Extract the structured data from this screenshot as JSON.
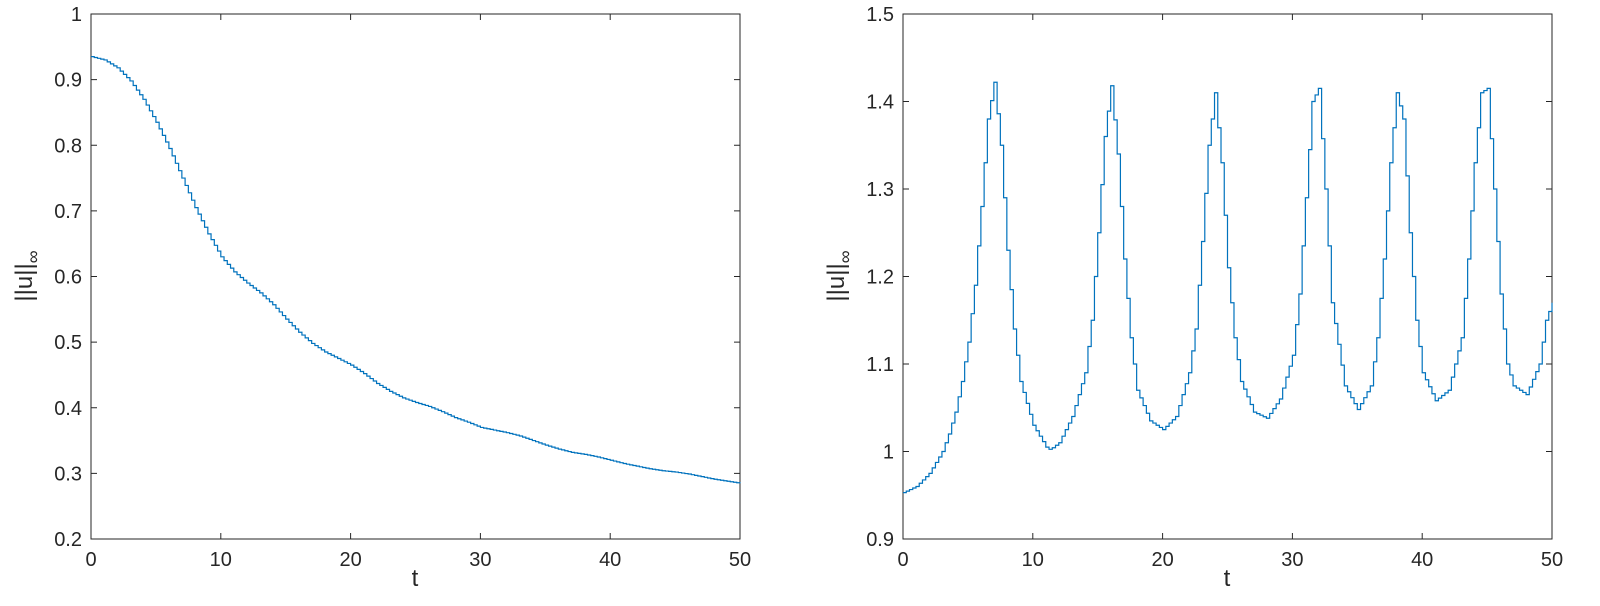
{
  "colors": {
    "series": "#0072BD",
    "axes": "#262626"
  },
  "chart_data": [
    {
      "type": "line",
      "title": "",
      "xlabel": "t",
      "ylabel": "||u||",
      "ylabel_subscript": "∞",
      "xlim": [
        0,
        50
      ],
      "ylim": [
        0.2,
        1
      ],
      "xticks": [
        0,
        10,
        20,
        30,
        40,
        50
      ],
      "xtick_labels": [
        "0",
        "10",
        "20",
        "30",
        "40",
        "50"
      ],
      "yticks": [
        0.2,
        0.3,
        0.4,
        0.5,
        0.6,
        0.7,
        0.8,
        0.9,
        1
      ],
      "ytick_labels": [
        "0.2",
        "0.3",
        "0.4",
        "0.5",
        "0.6",
        "0.7",
        "0.8",
        "0.9",
        "1"
      ],
      "grid": false,
      "step": true,
      "series": [
        {
          "x": [
            0,
            1,
            2,
            3,
            4,
            5,
            6,
            7,
            8,
            9,
            10,
            11,
            12,
            13,
            14,
            15,
            16,
            17,
            18,
            19,
            20,
            21,
            22,
            23,
            24,
            25,
            26,
            27,
            28,
            29,
            30,
            31,
            32,
            33,
            34,
            35,
            36,
            37,
            38,
            39,
            40,
            41,
            42,
            43,
            44,
            45,
            46,
            47,
            48,
            49,
            50
          ],
          "y": [
            0.935,
            0.93,
            0.918,
            0.898,
            0.87,
            0.835,
            0.795,
            0.75,
            0.705,
            0.665,
            0.63,
            0.607,
            0.59,
            0.575,
            0.557,
            0.535,
            0.515,
            0.498,
            0.485,
            0.475,
            0.465,
            0.452,
            0.437,
            0.425,
            0.415,
            0.408,
            0.402,
            0.394,
            0.385,
            0.378,
            0.37,
            0.366,
            0.362,
            0.357,
            0.35,
            0.343,
            0.337,
            0.332,
            0.329,
            0.325,
            0.32,
            0.315,
            0.311,
            0.307,
            0.304,
            0.302,
            0.299,
            0.295,
            0.291,
            0.288,
            0.285
          ]
        }
      ]
    },
    {
      "type": "line",
      "title": "",
      "xlabel": "t",
      "ylabel": "||u||",
      "ylabel_subscript": "∞",
      "xlim": [
        0,
        50
      ],
      "ylim": [
        0.9,
        1.5
      ],
      "xticks": [
        0,
        10,
        20,
        30,
        40,
        50
      ],
      "xtick_labels": [
        "0",
        "10",
        "20",
        "30",
        "40",
        "50"
      ],
      "yticks": [
        0.9,
        1,
        1.1,
        1.2,
        1.3,
        1.4,
        1.5
      ],
      "ytick_labels": [
        "0.9",
        "1",
        "1.1",
        "1.2",
        "1.3",
        "1.4",
        "1.5"
      ],
      "grid": false,
      "step": true,
      "series": [
        {
          "x": [
            0,
            1,
            2,
            3,
            3.5,
            4,
            4.5,
            5,
            5.5,
            6,
            6.5,
            7,
            7.5,
            8,
            8.5,
            9,
            10,
            11,
            11.3,
            12,
            13,
            14,
            14.5,
            15,
            15.5,
            16,
            16.5,
            17,
            17.5,
            18,
            19,
            20,
            21,
            22,
            22.5,
            23,
            23.5,
            24,
            24.5,
            25,
            25.5,
            26,
            27,
            28,
            29,
            30,
            30.5,
            31,
            31.5,
            32,
            32.5,
            33,
            34,
            35,
            36,
            36.5,
            37,
            37.5,
            38,
            38.5,
            39,
            39.5,
            40,
            41,
            42,
            43,
            43.5,
            44,
            44.5,
            45,
            45.5,
            46,
            46.5,
            47,
            48,
            49,
            49.5,
            50
          ],
          "y": [
            0.953,
            0.96,
            0.975,
            1.0,
            1.02,
            1.045,
            1.08,
            1.125,
            1.19,
            1.28,
            1.38,
            1.422,
            1.35,
            1.23,
            1.14,
            1.08,
            1.03,
            1.005,
            1.002,
            1.01,
            1.04,
            1.09,
            1.15,
            1.25,
            1.36,
            1.418,
            1.34,
            1.22,
            1.13,
            1.07,
            1.035,
            1.025,
            1.04,
            1.09,
            1.14,
            1.24,
            1.35,
            1.41,
            1.33,
            1.21,
            1.13,
            1.08,
            1.045,
            1.038,
            1.06,
            1.11,
            1.18,
            1.29,
            1.4,
            1.415,
            1.3,
            1.17,
            1.075,
            1.048,
            1.075,
            1.13,
            1.22,
            1.33,
            1.41,
            1.38,
            1.25,
            1.15,
            1.09,
            1.058,
            1.07,
            1.13,
            1.22,
            1.33,
            1.41,
            1.415,
            1.3,
            1.18,
            1.1,
            1.075,
            1.065,
            1.1,
            1.15,
            1.17
          ]
        }
      ]
    }
  ]
}
